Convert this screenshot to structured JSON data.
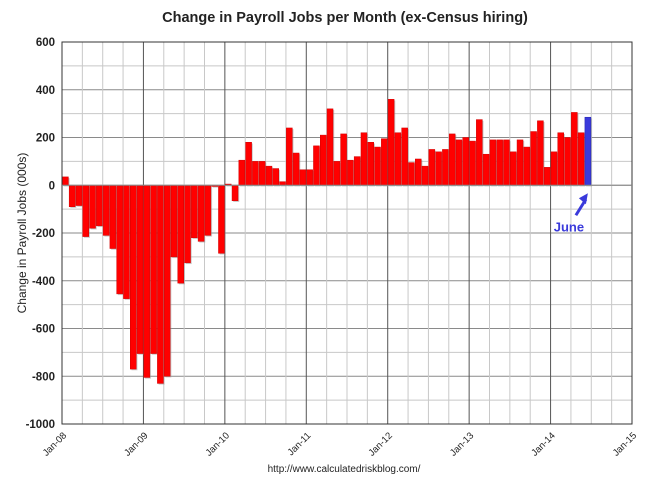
{
  "chart_data": {
    "type": "bar",
    "title": "Change in Payroll Jobs per Month (ex-Census hiring)",
    "ylabel": "Change in Payroll Jobs (000s)",
    "xlabel": "",
    "source": "http://www.calculatedriskblog.com/",
    "ylim": [
      -1000,
      600
    ],
    "yticks": [
      600,
      400,
      200,
      0,
      -200,
      -400,
      -600,
      -800,
      -1000
    ],
    "xticks": [
      "Jan-08",
      "Jan-09",
      "Jan-10",
      "Jan-11",
      "Jan-12",
      "Jan-13",
      "Jan-14",
      "Jan-15"
    ],
    "grid": true,
    "start_month": "Jan-08",
    "values": [
      35,
      -90,
      -85,
      -215,
      -180,
      -170,
      -210,
      -265,
      -455,
      -475,
      -770,
      -705,
      -805,
      -705,
      -830,
      -800,
      -300,
      -410,
      -325,
      -220,
      -235,
      -210,
      -5,
      -285,
      5,
      -65,
      105,
      180,
      100,
      100,
      80,
      70,
      15,
      240,
      135,
      65,
      65,
      165,
      210,
      320,
      100,
      215,
      105,
      120,
      220,
      180,
      160,
      195,
      360,
      220,
      240,
      95,
      110,
      80,
      150,
      140,
      150,
      215,
      190,
      200,
      185,
      275,
      130,
      190,
      190,
      190,
      140,
      190,
      160,
      225,
      270,
      75,
      140,
      220,
      200,
      305,
      220,
      285
    ],
    "highlight": {
      "label": "June",
      "index": 77
    },
    "colors": {
      "bar": "#ff0000",
      "highlight": "#3a3adb",
      "annotation": "#3a3adb"
    }
  }
}
